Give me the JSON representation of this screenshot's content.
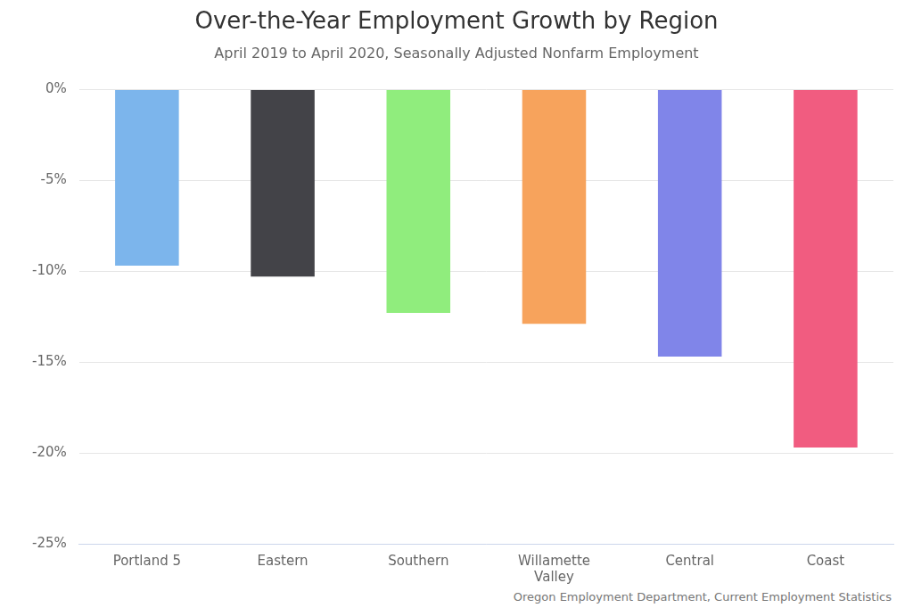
{
  "chart_data": {
    "type": "bar",
    "title": "Over-the-Year Employment Growth by Region",
    "subtitle": "April 2019 to April 2020, Seasonally Adjusted Nonfarm Employment",
    "source": "Oregon Employment Department, Current Employment Statistics",
    "categories": [
      "Portland 5",
      "Eastern",
      "Southern",
      "Willamette Valley",
      "Central",
      "Coast"
    ],
    "values": [
      -9.7,
      -10.3,
      -12.3,
      -12.9,
      -14.7,
      -19.7
    ],
    "colors": [
      "#7cb5ec",
      "#434348",
      "#90ed7d",
      "#f7a35c",
      "#8085e9",
      "#f15c80"
    ],
    "ylim": [
      -25,
      0
    ],
    "yticks": [
      {
        "value": -25,
        "label": "-25%"
      },
      {
        "value": -20,
        "label": "-20%"
      },
      {
        "value": -15,
        "label": "-15%"
      },
      {
        "value": -10,
        "label": "-10%"
      },
      {
        "value": -5,
        "label": "-5%"
      },
      {
        "value": 0,
        "label": "0%"
      }
    ],
    "grid": true
  }
}
